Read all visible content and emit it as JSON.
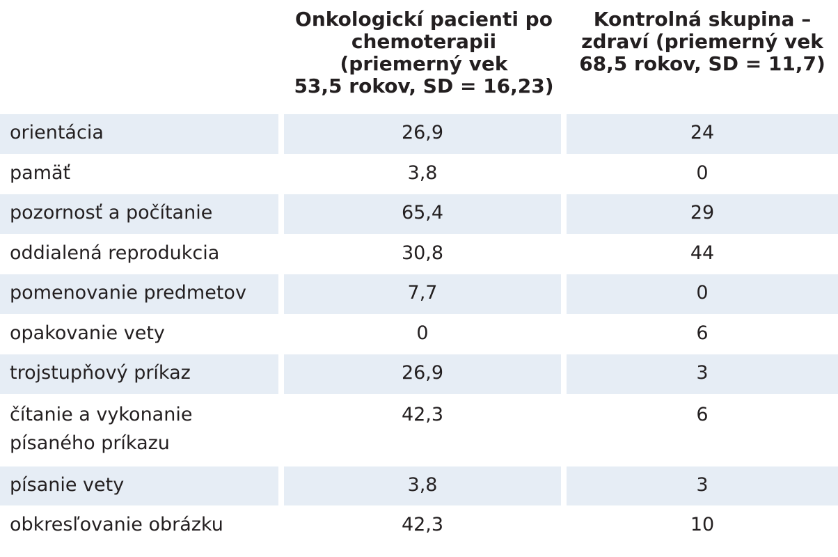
{
  "table": {
    "headers": {
      "label": "",
      "oncology": [
        "Onkologickí pacienti po",
        "chemoterapii",
        "(priemerný vek",
        "53,5 rokov, SD = 16,23)"
      ],
      "control": [
        "Kontrolná skupina –",
        "zdraví (priemerný vek",
        "68,5 rokov, SD = 11,7)"
      ]
    },
    "rows": [
      {
        "label": [
          "orientácia"
        ],
        "oncology": "26,9",
        "control": "24"
      },
      {
        "label": [
          "pamäť"
        ],
        "oncology": "3,8",
        "control": "0"
      },
      {
        "label": [
          "pozornosť a počítanie"
        ],
        "oncology": "65,4",
        "control": "29"
      },
      {
        "label": [
          "oddialená reprodukcia"
        ],
        "oncology": "30,8",
        "control": "44"
      },
      {
        "label": [
          "pomenovanie predmetov"
        ],
        "oncology": "7,7",
        "control": "0"
      },
      {
        "label": [
          "opakovanie vety"
        ],
        "oncology": "0",
        "control": "6"
      },
      {
        "label": [
          "trojstupňový príkaz"
        ],
        "oncology": "26,9",
        "control": "3"
      },
      {
        "label": [
          "čítanie a vykonanie",
          "písaného príkazu"
        ],
        "oncology": "42,3",
        "control": "6"
      },
      {
        "label": [
          "písanie vety"
        ],
        "oncology": "3,8",
        "control": "3"
      },
      {
        "label": [
          "obkresľovanie obrázku"
        ],
        "oncology": "42,3",
        "control": "10"
      }
    ]
  },
  "colors": {
    "stripe": "#e6edf5",
    "text": "#231f20",
    "background": "#ffffff"
  }
}
